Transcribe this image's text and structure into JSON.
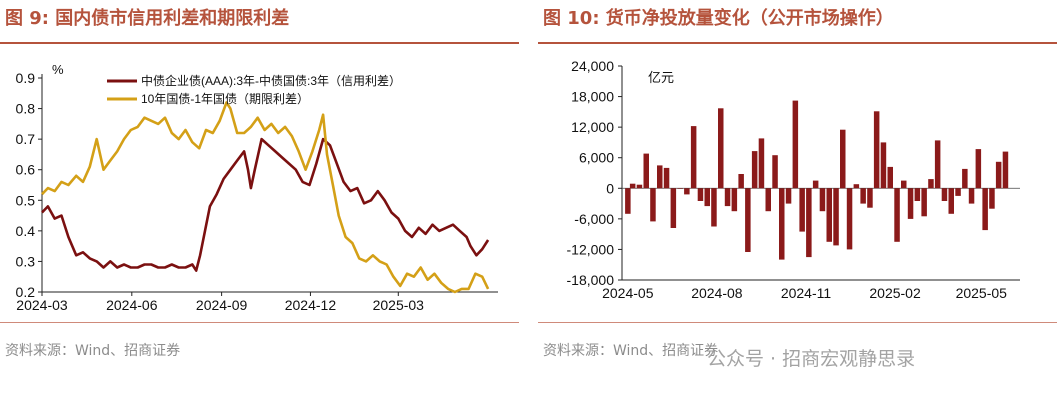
{
  "left_panel": {
    "title": "图 9:  国内债市信用利差和期限利差",
    "source": "资料来源：Wind、招商证券"
  },
  "right_panel": {
    "title": "图 10:  货币净投放量变化（公开市场操作）",
    "source": "资料来源：Wind、招商证券"
  },
  "watermark": "公众号 · 招商宏观静思录",
  "colors": {
    "credit": "#7b1010",
    "term": "#d4a017",
    "bar": "#8b1a1a",
    "title": "#b5533c"
  },
  "chart_data": [
    {
      "type": "line",
      "unit_label": "%",
      "ylim": [
        0.2,
        0.9
      ],
      "yticks": [
        "0.2",
        "0.3",
        "0.4",
        "0.5",
        "0.6",
        "0.7",
        "0.8",
        "0.9"
      ],
      "xlim": [
        "2024-03-01",
        "2025-06-05"
      ],
      "xticks": [
        "2024-03",
        "2024-06",
        "2024-09",
        "2024-12",
        "2025-03"
      ],
      "legend_position": "top-center",
      "grid": false,
      "series": [
        {
          "name": "中债企业债(AAA):3年-中债国债:3年（信用利差）",
          "color_key": "credit",
          "points": [
            [
              "2024-03-01",
              0.46
            ],
            [
              "2024-03-07",
              0.48
            ],
            [
              "2024-03-14",
              0.44
            ],
            [
              "2024-03-21",
              0.45
            ],
            [
              "2024-03-28",
              0.38
            ],
            [
              "2024-04-05",
              0.32
            ],
            [
              "2024-04-12",
              0.33
            ],
            [
              "2024-04-19",
              0.31
            ],
            [
              "2024-04-26",
              0.3
            ],
            [
              "2024-05-03",
              0.28
            ],
            [
              "2024-05-10",
              0.3
            ],
            [
              "2024-05-17",
              0.28
            ],
            [
              "2024-05-24",
              0.29
            ],
            [
              "2024-05-31",
              0.28
            ],
            [
              "2024-06-07",
              0.28
            ],
            [
              "2024-06-14",
              0.29
            ],
            [
              "2024-06-21",
              0.29
            ],
            [
              "2024-06-28",
              0.28
            ],
            [
              "2024-07-05",
              0.28
            ],
            [
              "2024-07-12",
              0.29
            ],
            [
              "2024-07-19",
              0.28
            ],
            [
              "2024-07-26",
              0.28
            ],
            [
              "2024-08-02",
              0.29
            ],
            [
              "2024-08-06",
              0.27
            ],
            [
              "2024-08-10",
              0.32
            ],
            [
              "2024-08-15",
              0.4
            ],
            [
              "2024-08-20",
              0.48
            ],
            [
              "2024-08-27",
              0.52
            ],
            [
              "2024-09-03",
              0.57
            ],
            [
              "2024-09-10",
              0.6
            ],
            [
              "2024-09-17",
              0.63
            ],
            [
              "2024-09-24",
              0.66
            ],
            [
              "2024-09-28",
              0.6
            ],
            [
              "2024-10-01",
              0.54
            ],
            [
              "2024-10-05",
              0.6
            ],
            [
              "2024-10-12",
              0.7
            ],
            [
              "2024-10-19",
              0.68
            ],
            [
              "2024-10-26",
              0.66
            ],
            [
              "2024-11-02",
              0.64
            ],
            [
              "2024-11-09",
              0.62
            ],
            [
              "2024-11-16",
              0.6
            ],
            [
              "2024-11-23",
              0.56
            ],
            [
              "2024-11-30",
              0.55
            ],
            [
              "2024-12-07",
              0.62
            ],
            [
              "2024-12-14",
              0.7
            ],
            [
              "2024-12-21",
              0.68
            ],
            [
              "2024-12-28",
              0.62
            ],
            [
              "2025-01-04",
              0.56
            ],
            [
              "2025-01-11",
              0.53
            ],
            [
              "2025-01-18",
              0.54
            ],
            [
              "2025-01-25",
              0.49
            ],
            [
              "2025-02-01",
              0.5
            ],
            [
              "2025-02-08",
              0.53
            ],
            [
              "2025-02-15",
              0.5
            ],
            [
              "2025-02-22",
              0.46
            ],
            [
              "2025-03-01",
              0.44
            ],
            [
              "2025-03-08",
              0.4
            ],
            [
              "2025-03-15",
              0.38
            ],
            [
              "2025-03-22",
              0.41
            ],
            [
              "2025-03-29",
              0.39
            ],
            [
              "2025-04-05",
              0.42
            ],
            [
              "2025-04-12",
              0.4
            ],
            [
              "2025-04-19",
              0.41
            ],
            [
              "2025-04-26",
              0.42
            ],
            [
              "2025-05-03",
              0.4
            ],
            [
              "2025-05-10",
              0.38
            ],
            [
              "2025-05-14",
              0.35
            ],
            [
              "2025-05-20",
              0.32
            ],
            [
              "2025-05-26",
              0.34
            ],
            [
              "2025-06-01",
              0.37
            ]
          ]
        },
        {
          "name": "10年国债-1年国债（期限利差）",
          "color_key": "term",
          "points": [
            [
              "2024-03-01",
              0.52
            ],
            [
              "2024-03-07",
              0.54
            ],
            [
              "2024-03-14",
              0.53
            ],
            [
              "2024-03-21",
              0.56
            ],
            [
              "2024-03-28",
              0.55
            ],
            [
              "2024-04-05",
              0.58
            ],
            [
              "2024-04-12",
              0.56
            ],
            [
              "2024-04-19",
              0.61
            ],
            [
              "2024-04-26",
              0.7
            ],
            [
              "2024-05-03",
              0.6
            ],
            [
              "2024-05-10",
              0.63
            ],
            [
              "2024-05-17",
              0.66
            ],
            [
              "2024-05-24",
              0.7
            ],
            [
              "2024-05-31",
              0.73
            ],
            [
              "2024-06-07",
              0.74
            ],
            [
              "2024-06-14",
              0.77
            ],
            [
              "2024-06-21",
              0.76
            ],
            [
              "2024-06-28",
              0.75
            ],
            [
              "2024-07-05",
              0.77
            ],
            [
              "2024-07-12",
              0.72
            ],
            [
              "2024-07-19",
              0.7
            ],
            [
              "2024-07-26",
              0.73
            ],
            [
              "2024-08-02",
              0.69
            ],
            [
              "2024-08-09",
              0.67
            ],
            [
              "2024-08-16",
              0.73
            ],
            [
              "2024-08-23",
              0.72
            ],
            [
              "2024-08-30",
              0.76
            ],
            [
              "2024-09-06",
              0.82
            ],
            [
              "2024-09-10",
              0.8
            ],
            [
              "2024-09-17",
              0.72
            ],
            [
              "2024-09-24",
              0.72
            ],
            [
              "2024-10-01",
              0.74
            ],
            [
              "2024-10-08",
              0.77
            ],
            [
              "2024-10-15",
              0.73
            ],
            [
              "2024-10-22",
              0.75
            ],
            [
              "2024-10-29",
              0.72
            ],
            [
              "2024-11-05",
              0.74
            ],
            [
              "2024-11-12",
              0.71
            ],
            [
              "2024-11-19",
              0.66
            ],
            [
              "2024-11-26",
              0.6
            ],
            [
              "2024-12-03",
              0.66
            ],
            [
              "2024-12-10",
              0.73
            ],
            [
              "2024-12-14",
              0.78
            ],
            [
              "2024-12-18",
              0.65
            ],
            [
              "2024-12-24",
              0.55
            ],
            [
              "2024-12-30",
              0.45
            ],
            [
              "2025-01-06",
              0.38
            ],
            [
              "2025-01-13",
              0.36
            ],
            [
              "2025-01-20",
              0.31
            ],
            [
              "2025-01-27",
              0.3
            ],
            [
              "2025-02-03",
              0.32
            ],
            [
              "2025-02-10",
              0.3
            ],
            [
              "2025-02-17",
              0.29
            ],
            [
              "2025-02-24",
              0.25
            ],
            [
              "2025-03-03",
              0.22
            ],
            [
              "2025-03-10",
              0.26
            ],
            [
              "2025-03-17",
              0.25
            ],
            [
              "2025-03-24",
              0.28
            ],
            [
              "2025-03-31",
              0.24
            ],
            [
              "2025-04-07",
              0.26
            ],
            [
              "2025-04-14",
              0.23
            ],
            [
              "2025-04-21",
              0.21
            ],
            [
              "2025-04-28",
              0.2
            ],
            [
              "2025-05-05",
              0.21
            ],
            [
              "2025-05-12",
              0.21
            ],
            [
              "2025-05-19",
              0.26
            ],
            [
              "2025-05-26",
              0.25
            ],
            [
              "2025-06-01",
              0.21
            ]
          ]
        }
      ]
    },
    {
      "type": "bar",
      "unit_label": "亿元",
      "ylim": [
        -18000,
        24000
      ],
      "yticks": [
        "-18,000",
        "-12,000",
        "-6,000",
        "0",
        "6,000",
        "12,000",
        "18,000",
        "24,000"
      ],
      "xlim": [
        "2024-04-25",
        "2025-06-10"
      ],
      "xticks": [
        "2024-05",
        "2024-08",
        "2024-11",
        "2025-02",
        "2025-05"
      ],
      "grid": false,
      "bars": [
        [
          "2024-05-01",
          -5000
        ],
        [
          "2024-05-06",
          900
        ],
        [
          "2024-05-13",
          700
        ],
        [
          "2024-05-20",
          6800
        ],
        [
          "2024-05-27",
          -6500
        ],
        [
          "2024-06-03",
          4500
        ],
        [
          "2024-06-10",
          4000
        ],
        [
          "2024-06-17",
          -7800
        ],
        [
          "2024-06-24",
          0
        ],
        [
          "2024-07-01",
          -1200
        ],
        [
          "2024-07-08",
          12200
        ],
        [
          "2024-07-15",
          -2500
        ],
        [
          "2024-07-22",
          -3500
        ],
        [
          "2024-07-29",
          -7500
        ],
        [
          "2024-08-05",
          15700
        ],
        [
          "2024-08-12",
          -3500
        ],
        [
          "2024-08-19",
          -4500
        ],
        [
          "2024-08-26",
          2800
        ],
        [
          "2024-09-02",
          -12500
        ],
        [
          "2024-09-09",
          7300
        ],
        [
          "2024-09-16",
          9800
        ],
        [
          "2024-09-23",
          -4500
        ],
        [
          "2024-09-30",
          6500
        ],
        [
          "2024-10-07",
          -14000
        ],
        [
          "2024-10-14",
          -3000
        ],
        [
          "2024-10-21",
          17200
        ],
        [
          "2024-10-28",
          -8500
        ],
        [
          "2024-11-04",
          -13500
        ],
        [
          "2024-11-11",
          1500
        ],
        [
          "2024-11-18",
          -4500
        ],
        [
          "2024-11-25",
          -10500
        ],
        [
          "2024-12-02",
          -11200
        ],
        [
          "2024-12-09",
          11500
        ],
        [
          "2024-12-16",
          -12000
        ],
        [
          "2024-12-23",
          800
        ],
        [
          "2024-12-30",
          -3000
        ],
        [
          "2025-01-06",
          -3800
        ],
        [
          "2025-01-13",
          15100
        ],
        [
          "2025-01-20",
          9000
        ],
        [
          "2025-01-27",
          4200
        ],
        [
          "2025-02-03",
          -10500
        ],
        [
          "2025-02-10",
          1500
        ],
        [
          "2025-02-17",
          -6000
        ],
        [
          "2025-02-24",
          -2500
        ],
        [
          "2025-03-03",
          -5500
        ],
        [
          "2025-03-10",
          1800
        ],
        [
          "2025-03-17",
          9400
        ],
        [
          "2025-03-24",
          -2500
        ],
        [
          "2025-03-31",
          -5000
        ],
        [
          "2025-04-07",
          -1500
        ],
        [
          "2025-04-14",
          3800
        ],
        [
          "2025-04-21",
          -3000
        ],
        [
          "2025-04-28",
          7700
        ],
        [
          "2025-05-05",
          -8200
        ],
        [
          "2025-05-12",
          -4000
        ],
        [
          "2025-05-19",
          5200
        ],
        [
          "2025-05-26",
          7200
        ]
      ]
    }
  ]
}
